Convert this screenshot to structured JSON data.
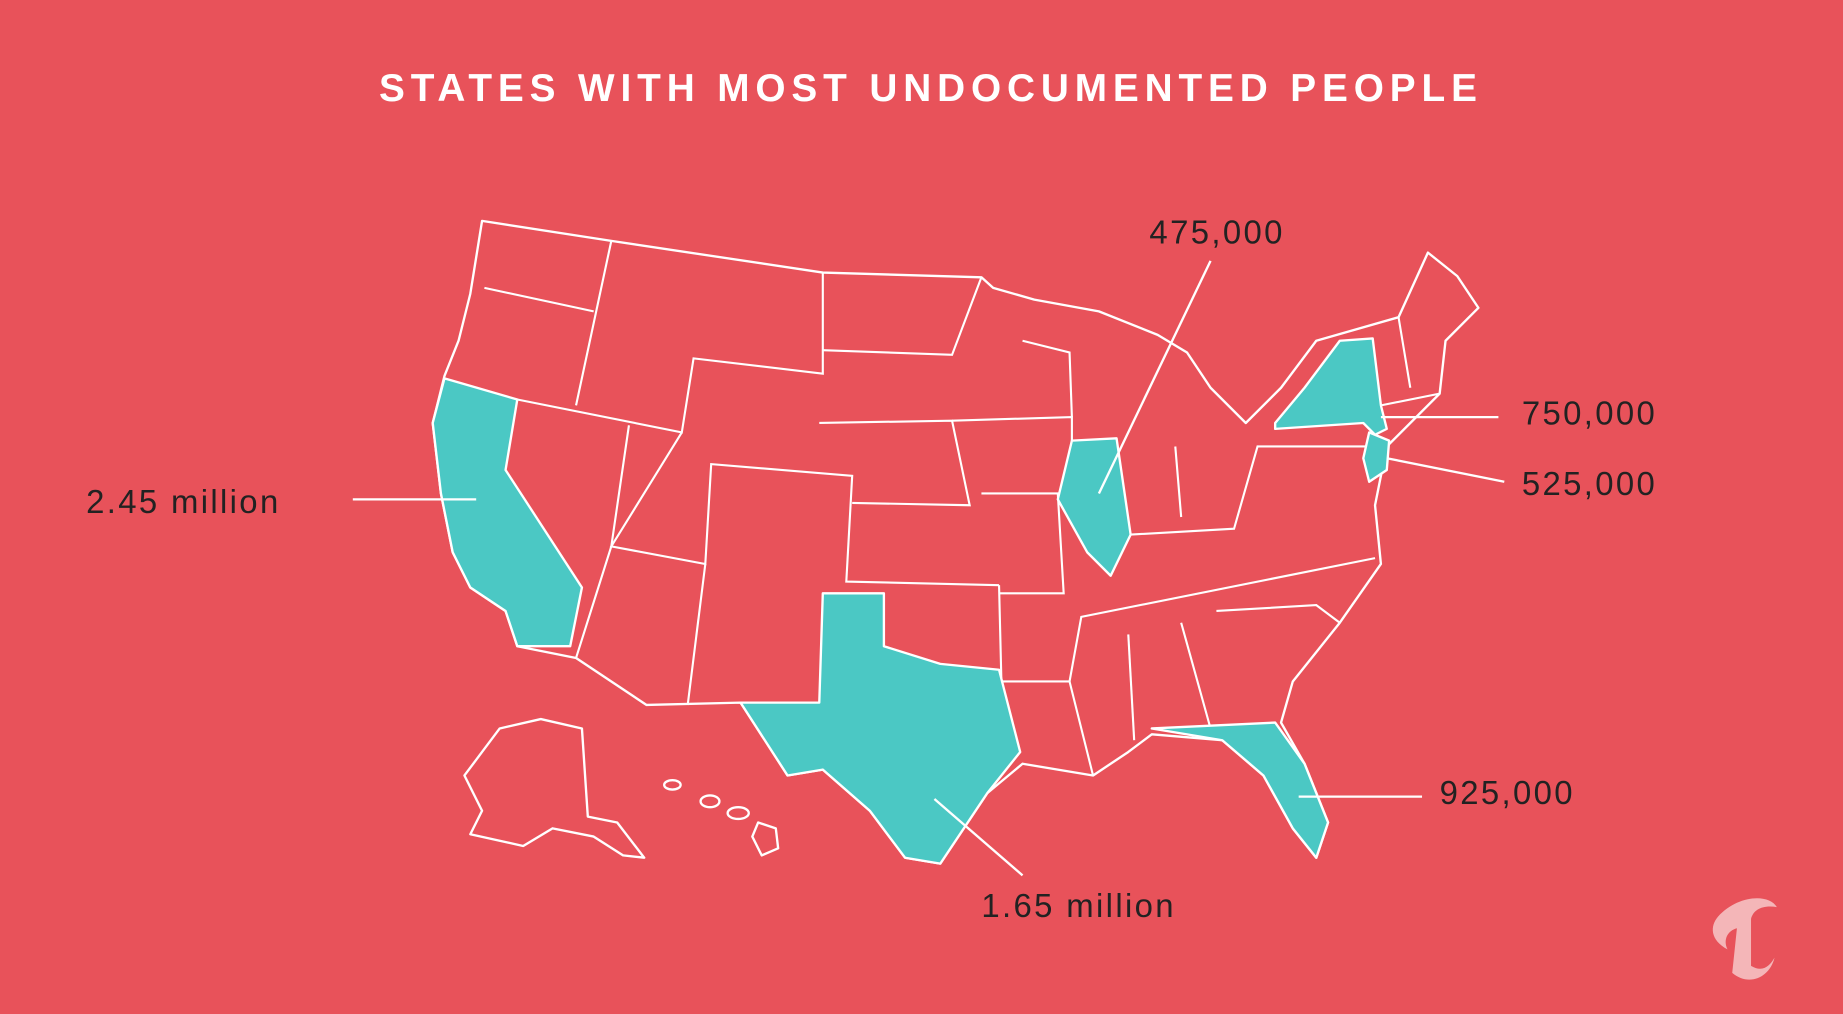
{
  "title": "STATES WITH MOST UNDOCUMENTED PEOPLE",
  "labels": [
    {
      "text": "2.45 million"
    },
    {
      "text": "475,000"
    },
    {
      "text": "750,000"
    },
    {
      "text": "525,000"
    },
    {
      "text": "925,000"
    },
    {
      "text": "1.65 million"
    }
  ]
}
